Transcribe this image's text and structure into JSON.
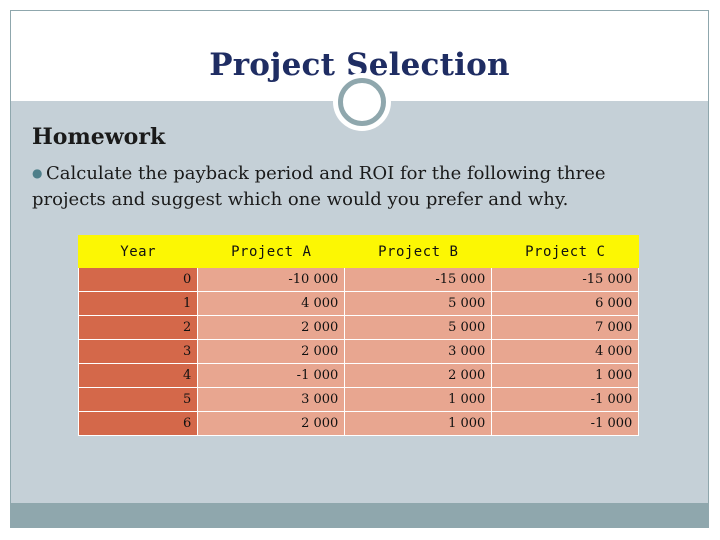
{
  "slide": {
    "title": "Project Selection",
    "heading": "Homework",
    "bullet": "Calculate the payback period and ROI for the following three projects and suggest which one would you prefer and why."
  },
  "table": {
    "headers": [
      "Year",
      "Project A",
      "Project B",
      "Project C"
    ],
    "rows": [
      [
        "0",
        "-10 000",
        "-15 000",
        "-15 000"
      ],
      [
        "1",
        "4 000",
        "5 000",
        "6 000"
      ],
      [
        "2",
        "2 000",
        "5 000",
        "7 000"
      ],
      [
        "3",
        "2 000",
        "3 000",
        "4 000"
      ],
      [
        "4",
        "-1 000",
        "2 000",
        "1 000"
      ],
      [
        "5",
        "3 000",
        "1 000",
        "-1 000"
      ],
      [
        "6",
        "2 000",
        "1 000",
        "-1 000"
      ]
    ]
  },
  "colors": {
    "title": "#1f2d63",
    "content_bg": "#c5d0d7",
    "accent": "#8fa7ad",
    "header_bg": "#fcf703",
    "year_cell": "#d4684a",
    "value_cell": "#e8a690"
  }
}
